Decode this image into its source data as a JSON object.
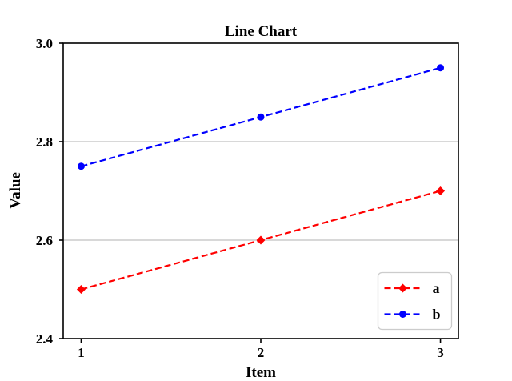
{
  "chart_data": {
    "type": "line",
    "title": "Line Chart",
    "xlabel": "Item",
    "ylabel": "Value",
    "x": [
      1,
      2,
      3
    ],
    "series": [
      {
        "name": "a",
        "values": [
          2.5,
          2.6,
          2.7
        ],
        "color": "#ff0000",
        "marker": "diamond",
        "linestyle": "dashed"
      },
      {
        "name": "b",
        "values": [
          2.75,
          2.85,
          2.95
        ],
        "color": "#0000ff",
        "marker": "circle",
        "linestyle": "dashed"
      }
    ],
    "xlim": [
      0.9,
      3.1
    ],
    "ylim": [
      2.4,
      3.0
    ],
    "xticks": [
      1,
      2,
      3
    ],
    "xtick_labels": [
      "1",
      "2",
      "3"
    ],
    "yticks": [
      2.4,
      2.6,
      2.8,
      3.0
    ],
    "ytick_labels": [
      "2.4",
      "2.6",
      "2.8",
      "3.0"
    ],
    "grid": "horizontal",
    "grid_color": "#b0b0b0",
    "axis_color": "#000000",
    "background": "#ffffff",
    "legend_position": "lower right"
  }
}
